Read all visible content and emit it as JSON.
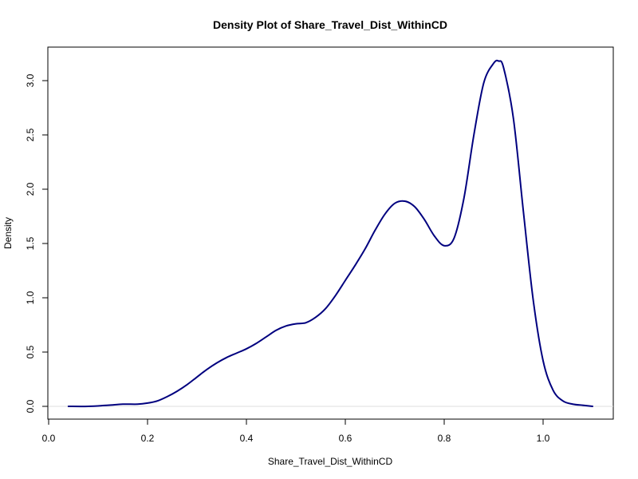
{
  "chart_data": {
    "type": "line",
    "title": "Density Plot of Share_Travel_Dist_WithinCD",
    "xlabel": "Share_Travel_Dist_WithinCD",
    "ylabel": "Density",
    "xlim": [
      0.0,
      1.1
    ],
    "ylim": [
      0.0,
      3.25
    ],
    "x_ticks": [
      "0.0",
      "0.2",
      "0.4",
      "0.6",
      "0.8",
      "1.0"
    ],
    "y_ticks": [
      "0.0",
      "0.5",
      "1.0",
      "1.5",
      "2.0",
      "2.5",
      "3.0"
    ],
    "grid": false,
    "legend": "none",
    "series": [
      {
        "color": "#00007f",
        "x": [
          0.04,
          0.08,
          0.12,
          0.15,
          0.18,
          0.2,
          0.22,
          0.24,
          0.26,
          0.28,
          0.3,
          0.32,
          0.34,
          0.36,
          0.38,
          0.4,
          0.42,
          0.44,
          0.46,
          0.48,
          0.5,
          0.52,
          0.54,
          0.56,
          0.58,
          0.6,
          0.62,
          0.64,
          0.66,
          0.68,
          0.7,
          0.72,
          0.74,
          0.76,
          0.78,
          0.8,
          0.82,
          0.84,
          0.86,
          0.88,
          0.9,
          0.91,
          0.92,
          0.94,
          0.96,
          0.98,
          1.0,
          1.02,
          1.04,
          1.06,
          1.08,
          1.1
        ],
        "y": [
          0.0,
          0.0,
          0.01,
          0.02,
          0.02,
          0.03,
          0.05,
          0.09,
          0.14,
          0.2,
          0.27,
          0.34,
          0.4,
          0.45,
          0.49,
          0.53,
          0.58,
          0.64,
          0.7,
          0.74,
          0.76,
          0.77,
          0.82,
          0.9,
          1.02,
          1.16,
          1.3,
          1.45,
          1.62,
          1.77,
          1.87,
          1.89,
          1.84,
          1.72,
          1.57,
          1.48,
          1.55,
          1.92,
          2.5,
          2.98,
          3.16,
          3.18,
          3.12,
          2.65,
          1.8,
          0.98,
          0.42,
          0.15,
          0.05,
          0.02,
          0.01,
          0.0
        ]
      }
    ]
  }
}
